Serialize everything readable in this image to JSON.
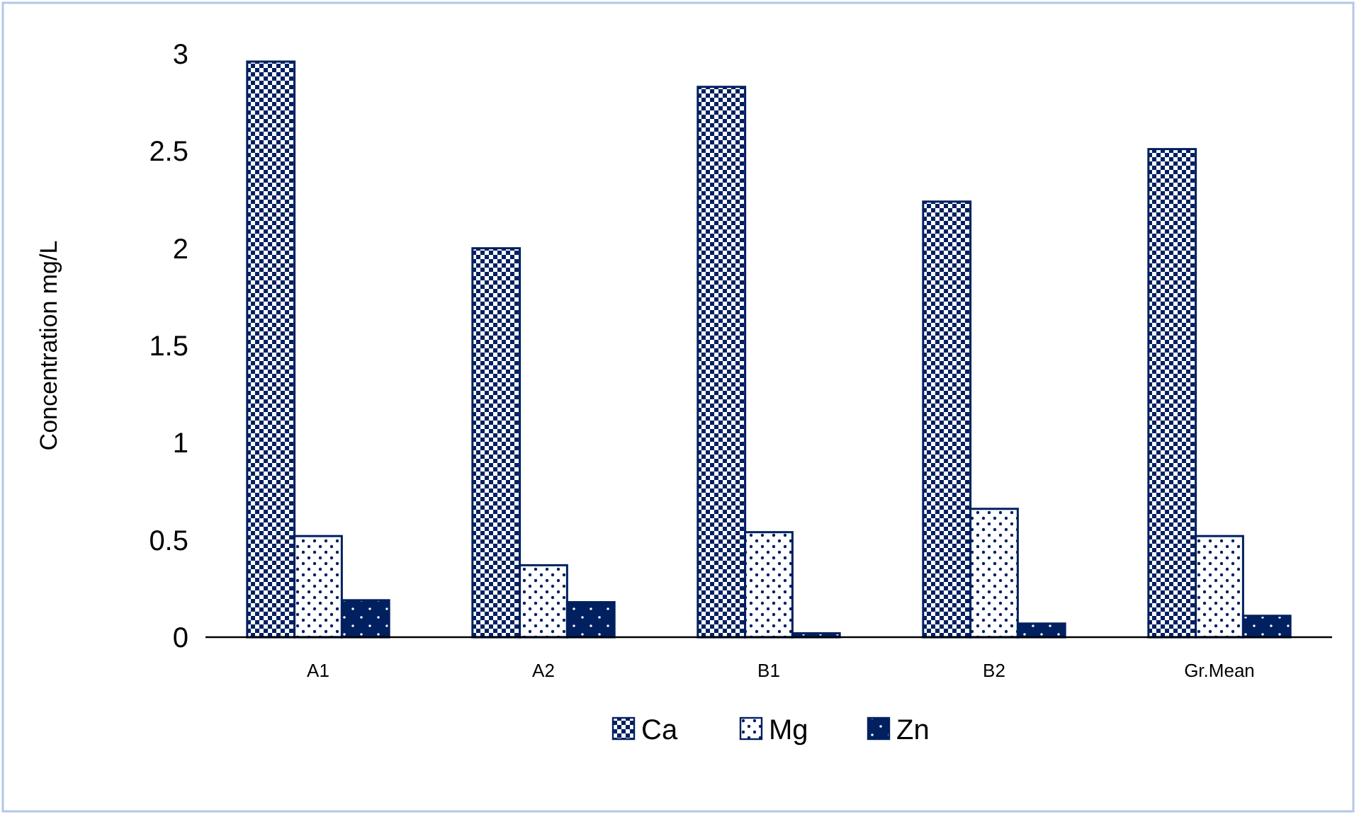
{
  "chart_data": {
    "type": "bar",
    "ylabel": "Concentration mg/L",
    "categories": [
      "A1",
      "A2",
      "B1",
      "B2",
      "Gr.Mean"
    ],
    "series": [
      {
        "name": "Ca",
        "color": "#002060",
        "values": [
          2.96,
          2.0,
          2.83,
          2.24,
          2.51
        ]
      },
      {
        "name": "Mg",
        "color": "#002060",
        "values": [
          0.52,
          0.37,
          0.54,
          0.66,
          0.52
        ]
      },
      {
        "name": "Zn",
        "color": "#002060",
        "values": [
          0.19,
          0.18,
          0.02,
          0.07,
          0.11
        ]
      }
    ],
    "ylim": [
      0,
      3
    ],
    "yticks": [
      0,
      0.5,
      1,
      1.5,
      2,
      2.5,
      3
    ],
    "grid": false,
    "legend": "bottom"
  }
}
